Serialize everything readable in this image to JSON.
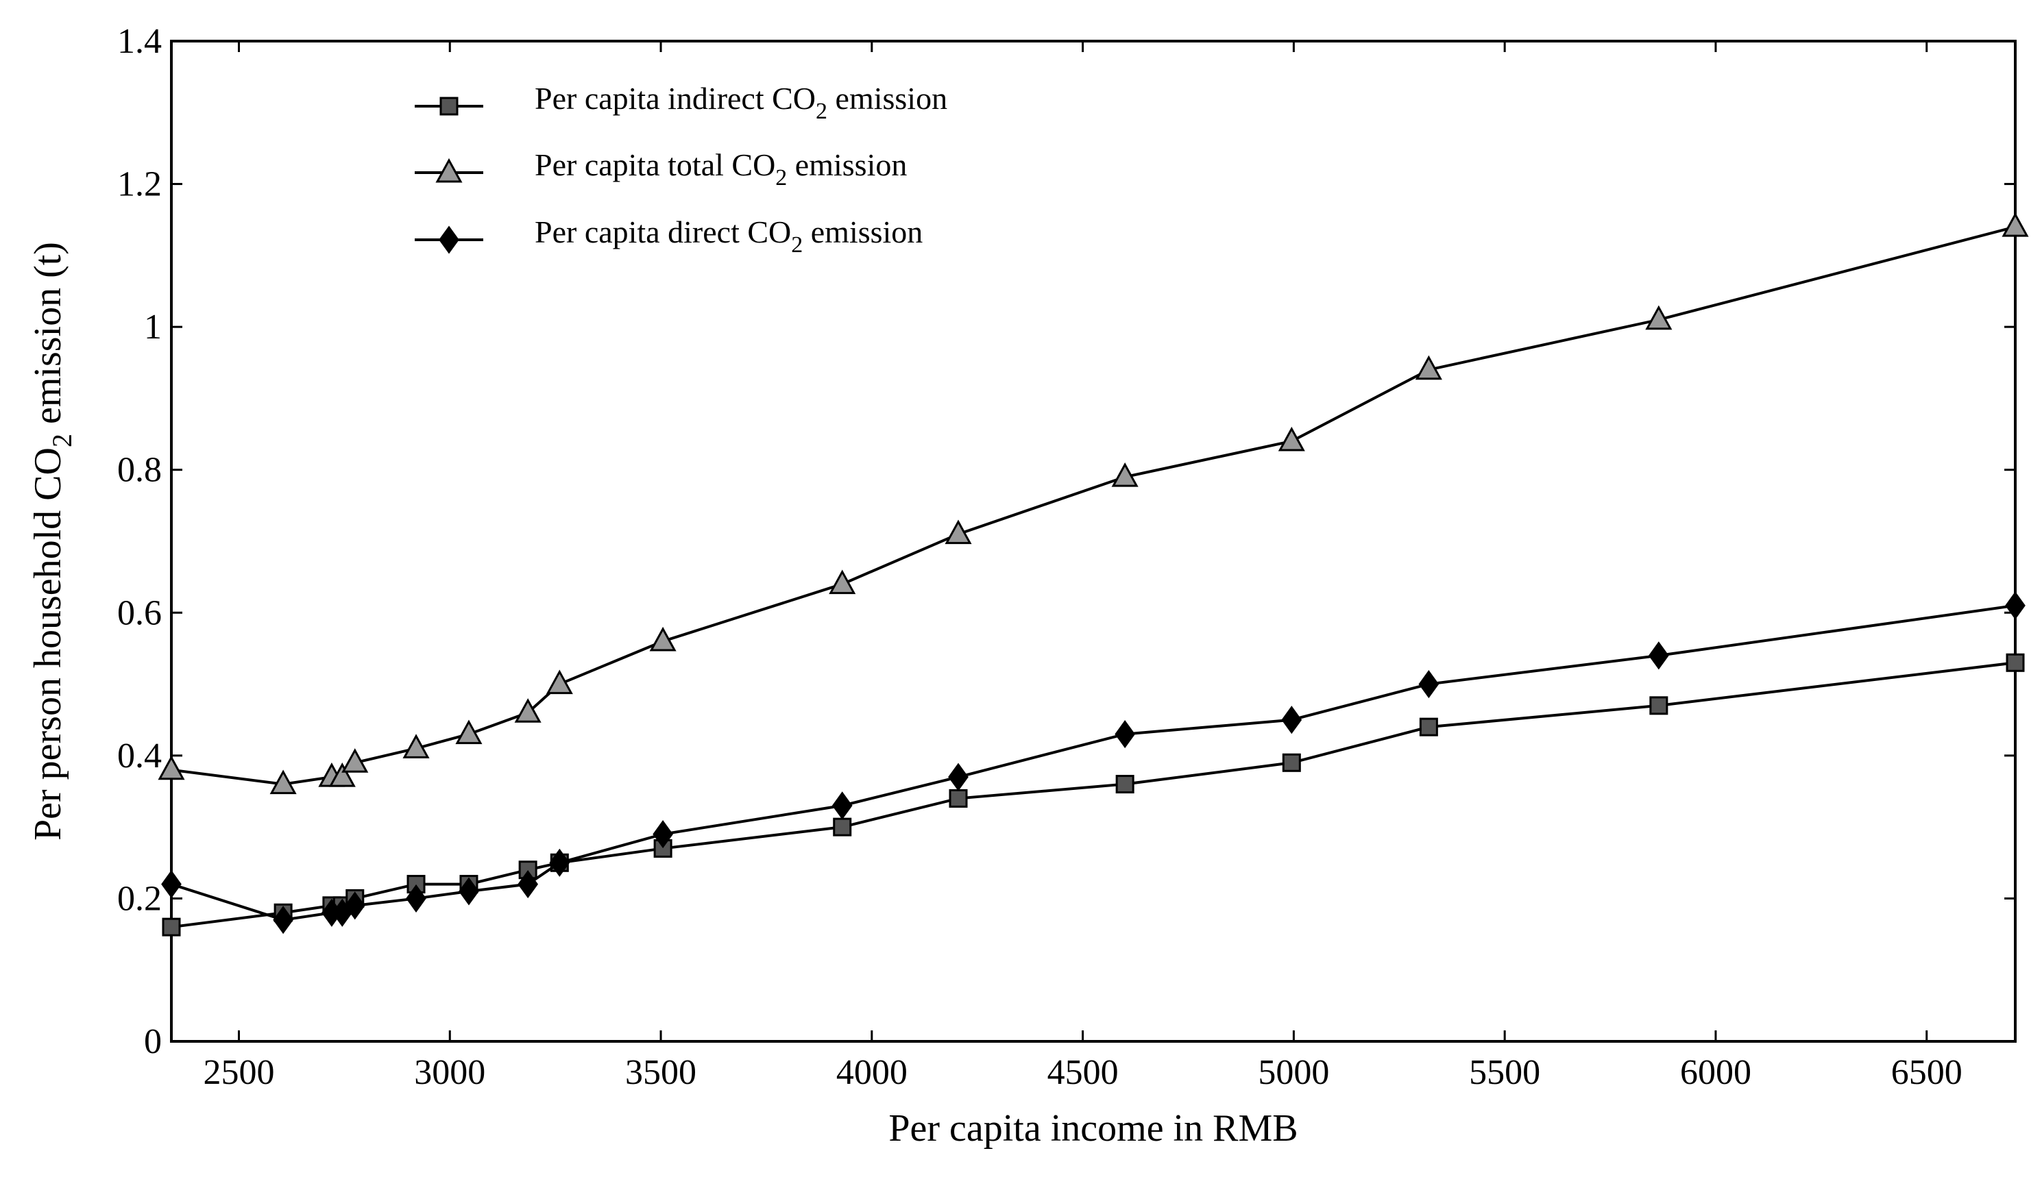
{
  "chart_data": {
    "type": "line",
    "title": "",
    "xlabel": "Per capita income in RMB",
    "ylabel": {
      "prefix": "Per person household CO",
      "sub": "2",
      "suffix": " emission (t)"
    },
    "xlim": [
      2340,
      6710
    ],
    "ylim": [
      0,
      1.4
    ],
    "x_ticks": [
      2500,
      3000,
      3500,
      4000,
      4500,
      5000,
      5500,
      6000,
      6500
    ],
    "y_ticks": [
      0,
      0.2,
      0.4,
      0.6,
      0.8,
      1,
      1.2,
      1.4
    ],
    "y_tick_labels": [
      "0",
      "0.2",
      "0.4",
      "0.6",
      "0.8",
      "1",
      "1.2",
      "1.4"
    ],
    "grid": false,
    "legend_position": "top-left",
    "x": [
      2340,
      2605,
      2720,
      2745,
      2775,
      2920,
      3045,
      3185,
      3260,
      3505,
      3930,
      4205,
      4600,
      4995,
      5320,
      5865,
      6710
    ],
    "series": [
      {
        "name": "Per capita indirect CO2 emission",
        "label_prefix": "Per capita indirect CO",
        "label_sub": "2",
        "label_suffix": " emission",
        "marker": "square",
        "color": "#555555",
        "values": [
          0.16,
          0.18,
          0.19,
          0.19,
          0.2,
          0.22,
          0.22,
          0.24,
          0.25,
          0.27,
          0.3,
          0.34,
          0.36,
          0.39,
          0.44,
          0.47,
          0.53
        ]
      },
      {
        "name": "Per capita total CO2 emission",
        "label_prefix": "Per capita total CO",
        "label_sub": "2",
        "label_suffix": " emission",
        "marker": "triangle",
        "color": "#999999",
        "values": [
          0.38,
          0.36,
          0.37,
          0.37,
          0.39,
          0.41,
          0.43,
          0.46,
          0.5,
          0.56,
          0.64,
          0.71,
          0.79,
          0.84,
          0.94,
          1.01,
          1.14
        ]
      },
      {
        "name": "Per capita direct CO2 emission",
        "label_prefix": "Per capita direct CO",
        "label_sub": "2",
        "label_suffix": " emission",
        "marker": "diamond",
        "color": "#000000",
        "values": [
          0.22,
          0.17,
          0.18,
          0.18,
          0.19,
          0.2,
          0.21,
          0.22,
          0.25,
          0.29,
          0.33,
          0.37,
          0.43,
          0.45,
          0.5,
          0.54,
          0.61
        ]
      }
    ]
  }
}
